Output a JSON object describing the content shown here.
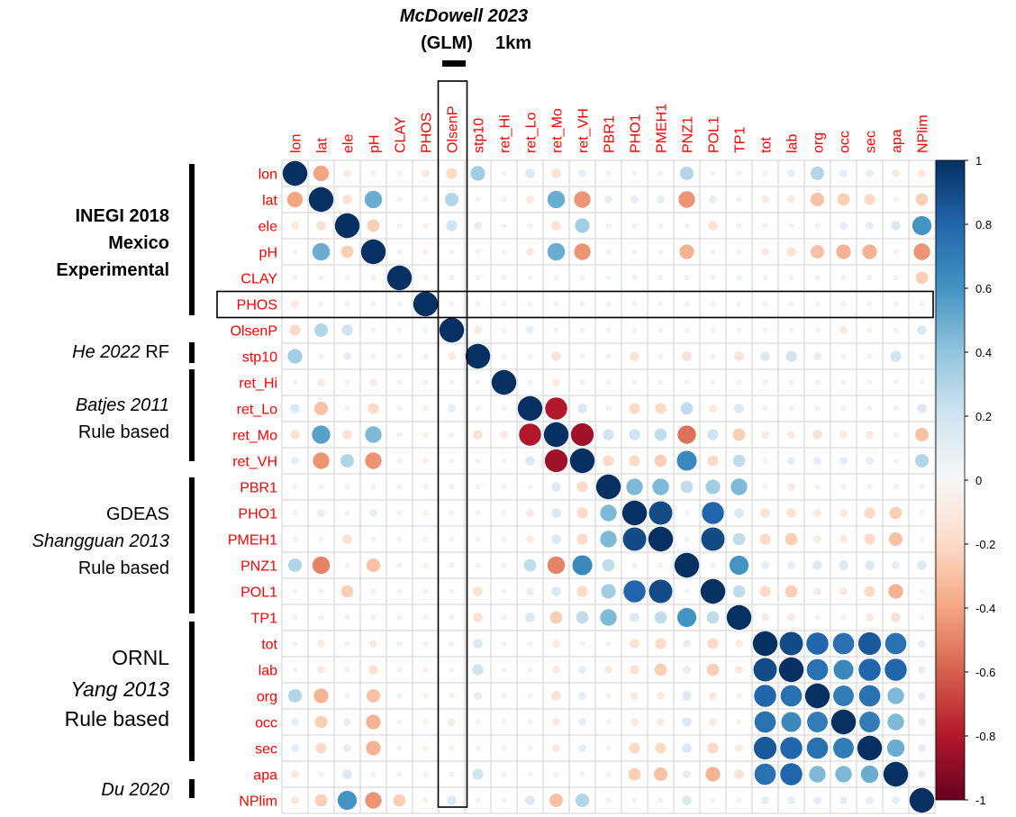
{
  "title": {
    "line1": "McDowell 2023",
    "line2": "(GLM)",
    "line2_suffix": "1km"
  },
  "groups": [
    {
      "lines": [
        {
          "text": "INEGI 2018",
          "style": "bold"
        },
        {
          "text": "Mexico",
          "style": "bold"
        },
        {
          "text": "Experimental",
          "style": "bold"
        }
      ]
    },
    {
      "lines": [
        {
          "parts": [
            {
              "text": "He 2022",
              "style": "italic"
            },
            {
              "text": " RF",
              "style": "normal"
            }
          ]
        }
      ]
    },
    {
      "lines": [
        {
          "text": "Batjes 2011",
          "style": "italic"
        },
        {
          "text": "Rule based",
          "style": "normal"
        }
      ]
    },
    {
      "lines": [
        {
          "text": "GDEAS",
          "style": "normal"
        },
        {
          "text": "Shangguan 2013",
          "style": "italic"
        },
        {
          "text": "Rule based",
          "style": "normal"
        }
      ]
    },
    {
      "lines": [
        {
          "text": "ORNL",
          "style": "normal"
        },
        {
          "text": "Yang 2013",
          "style": "italic"
        },
        {
          "text": "Rule based",
          "style": "normal"
        }
      ]
    },
    {
      "lines": [
        {
          "text": "Du 2020",
          "style": "italic"
        }
      ]
    }
  ],
  "chart_data": {
    "type": "heatmap",
    "style": "correlation-circles",
    "variables": [
      "lon",
      "lat",
      "ele",
      "pH",
      "CLAY",
      "PHOS",
      "OlsenP",
      "stp10",
      "ret_Hi",
      "ret_Lo",
      "ret_Mo",
      "ret_VH",
      "PBR1",
      "PHO1",
      "PMEH1",
      "PNZ1",
      "POL1",
      "TP1",
      "tot",
      "lab",
      "org",
      "occ",
      "sec",
      "apa",
      "NPlim"
    ],
    "highlighted_row": "PHOS",
    "highlighted_column": "OlsenP",
    "colorbar": {
      "ticks": [
        "1",
        "0.8",
        "0.6",
        "0.4",
        "0.2",
        "0",
        "-0.2",
        "-0.4",
        "-0.6",
        "-0.8",
        "-1"
      ],
      "range": [
        -1,
        1
      ],
      "low_color": "#67001f",
      "mid_color": "#f7f7f7",
      "high_color": "#053061"
    },
    "matrix": [
      [
        1,
        -0.4,
        -0.1,
        0.05,
        0.05,
        -0.1,
        -0.2,
        0.35,
        0.05,
        0.15,
        -0.15,
        0.1,
        -0.05,
        0.05,
        0.05,
        0.3,
        0.05,
        0.05,
        0.05,
        0.1,
        0.3,
        0.1,
        0.1,
        -0.1,
        -0.1
      ],
      [
        -0.4,
        1,
        -0.15,
        0.5,
        0.05,
        -0.05,
        0.3,
        -0.05,
        0.05,
        -0.1,
        0.5,
        -0.45,
        0.1,
        0.1,
        0.1,
        -0.45,
        0.1,
        0.05,
        -0.1,
        -0.1,
        -0.3,
        -0.25,
        -0.2,
        -0.05,
        -0.25
      ],
      [
        -0.1,
        -0.15,
        1,
        -0.25,
        0.05,
        -0.05,
        0.2,
        0.1,
        0.05,
        0.05,
        -0.15,
        0.35,
        0.05,
        0.05,
        -0.05,
        0.05,
        -0.15,
        0.05,
        0.05,
        0.05,
        0.05,
        0.1,
        0.1,
        0.15,
        0.6
      ],
      [
        0.05,
        0.5,
        -0.25,
        1,
        0.05,
        -0.05,
        0.05,
        -0.05,
        -0.05,
        -0.1,
        0.5,
        -0.45,
        0.05,
        -0.05,
        0.05,
        -0.35,
        0.05,
        -0.05,
        -0.1,
        -0.15,
        -0.3,
        -0.35,
        -0.35,
        -0.05,
        -0.45
      ],
      [
        0.05,
        0.05,
        0.05,
        0.05,
        1,
        -0.05,
        0.05,
        0.05,
        0.05,
        0.05,
        0.05,
        0.05,
        0.05,
        0.05,
        0.05,
        0.05,
        0.05,
        0.05,
        0.05,
        0.05,
        0.05,
        0.05,
        0.05,
        0.05,
        -0.25
      ],
      [
        -0.1,
        -0.05,
        -0.05,
        -0.05,
        -0.05,
        1,
        0.05,
        -0.05,
        -0.05,
        -0.05,
        -0.05,
        -0.05,
        -0.05,
        -0.05,
        -0.05,
        -0.05,
        -0.05,
        -0.05,
        -0.05,
        -0.05,
        -0.05,
        -0.05,
        -0.05,
        -0.05,
        -0.05
      ],
      [
        -0.2,
        0.3,
        0.2,
        0.05,
        0.05,
        0.05,
        1,
        -0.1,
        0.05,
        0.1,
        0.05,
        0.05,
        0.05,
        0.05,
        0.05,
        0.05,
        0.05,
        0.05,
        0.05,
        0.05,
        -0.05,
        -0.1,
        -0.05,
        0.05,
        0.15
      ],
      [
        0.35,
        -0.05,
        0.1,
        -0.05,
        0.05,
        -0.05,
        -0.1,
        1,
        0.05,
        -0.05,
        -0.15,
        0.05,
        0.05,
        -0.15,
        -0.05,
        -0.15,
        0.05,
        -0.15,
        0.15,
        0.2,
        0.1,
        0.05,
        0.05,
        0.2,
        0.05
      ],
      [
        0.05,
        -0.1,
        0.05,
        -0.1,
        0.05,
        -0.05,
        0.05,
        0.05,
        1,
        -0.05,
        -0.1,
        0.05,
        0.05,
        0.05,
        0.05,
        0.05,
        0.05,
        0.05,
        0.05,
        0.05,
        0.05,
        0.05,
        0.05,
        0.05,
        0.05
      ],
      [
        0.15,
        -0.3,
        0.05,
        -0.2,
        0.05,
        -0.05,
        0.1,
        -0.05,
        -0.05,
        1,
        -0.8,
        0.15,
        0.05,
        -0.2,
        -0.2,
        0.25,
        -0.1,
        0.15,
        0.05,
        0.05,
        0.05,
        0.05,
        0.05,
        0.05,
        0.15
      ],
      [
        -0.15,
        0.55,
        -0.15,
        0.45,
        0.05,
        -0.05,
        0.05,
        -0.15,
        -0.1,
        -0.8,
        1,
        -0.85,
        0.2,
        0.2,
        0.25,
        -0.55,
        0.2,
        -0.25,
        -0.1,
        -0.1,
        -0.15,
        -0.1,
        -0.1,
        -0.05,
        -0.3
      ],
      [
        0.1,
        -0.45,
        0.3,
        -0.45,
        0.05,
        -0.05,
        0.05,
        0.05,
        0.05,
        0.15,
        -0.85,
        1,
        -0.2,
        -0.2,
        -0.25,
        0.65,
        -0.2,
        0.25,
        0.05,
        0.1,
        0.1,
        0.1,
        0.1,
        0.05,
        0.3
      ],
      [
        -0.05,
        0.05,
        0.05,
        0.05,
        0.05,
        -0.05,
        0.05,
        0.05,
        0.05,
        0.05,
        0.15,
        -0.2,
        1,
        0.45,
        0.45,
        0.25,
        0.35,
        0.45,
        -0.05,
        -0.1,
        -0.05,
        -0.05,
        -0.05,
        -0.05,
        0.05
      ],
      [
        0.05,
        0.1,
        0.05,
        0.1,
        0.05,
        -0.05,
        0.05,
        -0.05,
        0.05,
        -0.1,
        0.15,
        -0.2,
        0.45,
        1,
        0.9,
        0.05,
        0.8,
        0.15,
        -0.15,
        -0.15,
        -0.1,
        -0.1,
        -0.2,
        -0.25,
        0.05
      ],
      [
        0.05,
        0.05,
        -0.15,
        0.05,
        0.05,
        -0.05,
        0.05,
        -0.05,
        0.05,
        -0.1,
        0.15,
        -0.2,
        0.45,
        0.9,
        1,
        0.05,
        0.9,
        0.25,
        -0.2,
        -0.25,
        -0.1,
        -0.1,
        -0.2,
        -0.3,
        0.05
      ],
      [
        0.3,
        -0.5,
        0.05,
        -0.3,
        0.05,
        -0.05,
        0.05,
        -0.05,
        0.05,
        0.25,
        -0.5,
        0.65,
        0.25,
        0.05,
        0.05,
        1,
        0.05,
        0.6,
        0.1,
        0.1,
        0.15,
        0.15,
        0.15,
        0.1,
        0.15
      ],
      [
        0.05,
        0.05,
        -0.25,
        0.05,
        0.05,
        -0.05,
        0.05,
        -0.15,
        0.05,
        -0.1,
        0.15,
        -0.2,
        0.35,
        0.8,
        0.9,
        0.05,
        1,
        0.25,
        -0.2,
        -0.25,
        -0.1,
        -0.1,
        -0.2,
        -0.35,
        0.05
      ],
      [
        0.05,
        0.05,
        0.05,
        0.05,
        0.05,
        -0.05,
        0.05,
        -0.15,
        0.05,
        0.15,
        -0.25,
        0.25,
        0.45,
        0.15,
        0.25,
        0.6,
        0.25,
        1,
        -0.1,
        -0.1,
        -0.05,
        -0.05,
        -0.1,
        -0.15,
        0.05
      ],
      [
        0.05,
        -0.1,
        0.05,
        -0.1,
        0.05,
        -0.05,
        0.05,
        0.15,
        0.05,
        0.05,
        -0.1,
        0.05,
        -0.05,
        -0.15,
        -0.2,
        0.1,
        -0.2,
        -0.1,
        1,
        0.9,
        0.8,
        0.75,
        0.85,
        0.75,
        0.1
      ],
      [
        0.05,
        -0.1,
        0.05,
        -0.15,
        0.05,
        -0.05,
        0.05,
        0.2,
        0.05,
        0.05,
        -0.1,
        0.1,
        -0.1,
        -0.15,
        -0.25,
        0.1,
        -0.25,
        -0.1,
        0.9,
        1,
        0.75,
        0.65,
        0.8,
        0.8,
        0.1
      ],
      [
        0.3,
        -0.35,
        0.05,
        -0.3,
        0.05,
        -0.05,
        -0.05,
        0.1,
        0.05,
        0.05,
        -0.15,
        0.1,
        -0.05,
        -0.1,
        -0.1,
        0.15,
        -0.1,
        -0.05,
        0.8,
        0.75,
        1,
        0.7,
        0.75,
        0.45,
        0.1
      ],
      [
        0.1,
        -0.25,
        0.1,
        -0.35,
        0.05,
        -0.05,
        -0.1,
        0.05,
        0.05,
        0.05,
        -0.1,
        0.1,
        -0.05,
        -0.1,
        -0.1,
        0.15,
        -0.1,
        -0.05,
        0.75,
        0.65,
        0.7,
        1,
        0.7,
        0.45,
        0.1
      ],
      [
        0.1,
        -0.2,
        0.1,
        -0.35,
        0.05,
        -0.05,
        -0.05,
        0.05,
        0.05,
        0.05,
        -0.1,
        0.1,
        -0.05,
        -0.2,
        -0.2,
        0.15,
        -0.2,
        -0.1,
        0.85,
        0.8,
        0.75,
        0.7,
        1,
        0.5,
        0.1
      ],
      [
        -0.1,
        -0.05,
        0.15,
        -0.05,
        0.05,
        -0.05,
        0.05,
        0.2,
        0.05,
        0.05,
        -0.05,
        0.05,
        -0.05,
        -0.25,
        -0.3,
        0.1,
        -0.35,
        -0.15,
        0.75,
        0.8,
        0.45,
        0.45,
        0.5,
        1,
        0.1
      ],
      [
        -0.1,
        -0.25,
        0.6,
        -0.45,
        -0.25,
        -0.05,
        0.15,
        0.05,
        0.05,
        0.15,
        -0.3,
        0.3,
        0.05,
        0.05,
        0.05,
        0.15,
        0.05,
        0.05,
        0.1,
        0.1,
        0.1,
        0.1,
        0.1,
        0.1,
        1
      ]
    ]
  }
}
